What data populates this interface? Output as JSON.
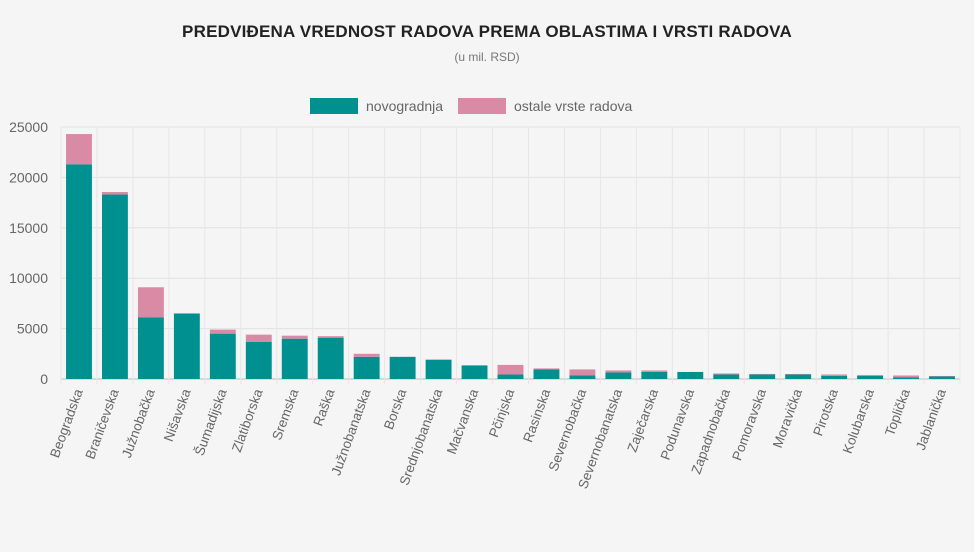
{
  "chart_data": {
    "type": "bar",
    "stacked": true,
    "title": "PREDVIĐENA VREDNOST RADOVA PREMA OBLASTIMA I VRSTI RADOVA",
    "subtitle": "(u mil. RSD)",
    "xlabel": "",
    "ylabel": "",
    "ylim": [
      0,
      25000
    ],
    "yticks": [
      0,
      5000,
      10000,
      15000,
      20000,
      25000
    ],
    "grid": true,
    "legend_position": "top",
    "categories": [
      "Beogradska",
      "Braničevska",
      "Južnobačka",
      "Nišavska",
      "Šumadijska",
      "Zlatiborska",
      "Sremska",
      "Raška",
      "Južnobanatska",
      "Borska",
      "Srednjobanatska",
      "Mačvanska",
      "Pčinjska",
      "Rasinska",
      "Severnobačka",
      "Severnobanatska",
      "Zaječarska",
      "Podunavska",
      "Zapadnobačka",
      "Pomoravska",
      "Moravička",
      "Pirotska",
      "Kolubarska",
      "Toplička",
      "Jablanička"
    ],
    "series": [
      {
        "name": "novogradnja",
        "color": "#009090",
        "values": [
          21300,
          18300,
          6100,
          6500,
          4500,
          3700,
          4000,
          4100,
          2200,
          2200,
          1900,
          1350,
          450,
          950,
          350,
          650,
          700,
          700,
          450,
          450,
          450,
          300,
          300,
          150,
          250
        ]
      },
      {
        "name": "ostale vrste radova",
        "color": "#d98aa5",
        "values": [
          3000,
          250,
          3000,
          0,
          400,
          700,
          300,
          150,
          300,
          0,
          50,
          0,
          950,
          100,
          600,
          200,
          150,
          0,
          100,
          50,
          50,
          150,
          100,
          200,
          50
        ]
      }
    ]
  }
}
